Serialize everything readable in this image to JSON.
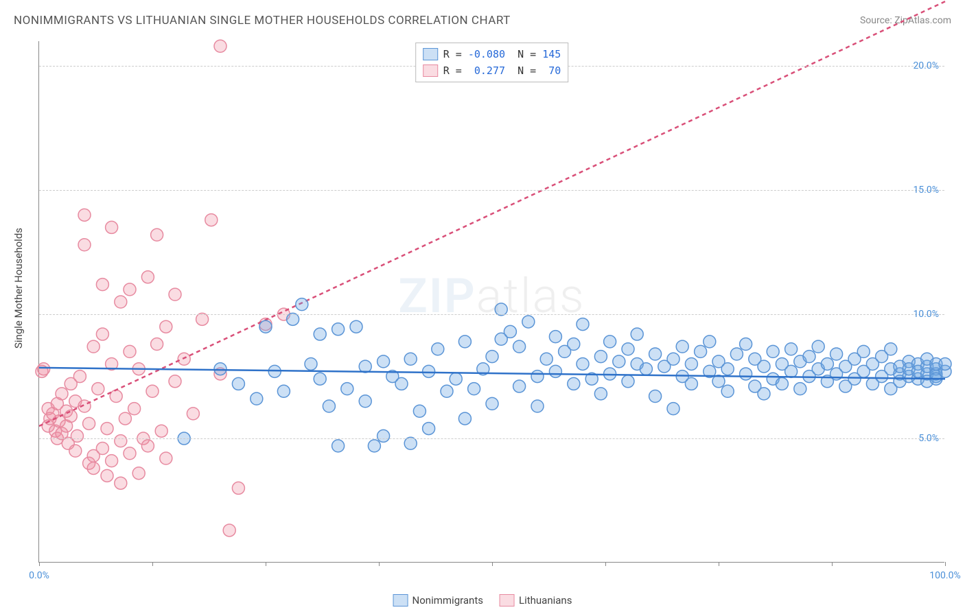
{
  "title": "NONIMMIGRANTS VS LITHUANIAN SINGLE MOTHER HOUSEHOLDS CORRELATION CHART",
  "source": "Source: ZipAtlas.com",
  "watermark_bold": "ZIP",
  "watermark_thin": "atlas",
  "y_axis_title": "Single Mother Households",
  "chart": {
    "type": "scatter",
    "xlim": [
      0,
      100
    ],
    "ylim": [
      0,
      21
    ],
    "x_ticks": [
      0,
      12.5,
      25,
      37.5,
      50,
      62.5,
      75,
      87.5,
      100
    ],
    "x_tick_labels": {
      "0": "0.0%",
      "100": "100.0%"
    },
    "y_ticks": [
      5,
      10,
      15,
      20
    ],
    "y_tick_labels": {
      "5": "5.0%",
      "10": "10.0%",
      "15": "15.0%",
      "20": "20.0%"
    },
    "background_color": "#ffffff",
    "grid_color": "#cccccc",
    "axis_color": "#888888",
    "label_color": "#4a8fd8",
    "marker_radius": 9,
    "marker_stroke_width": 1.5,
    "trend_line_width": 2.5
  },
  "series": {
    "nonimmigrants": {
      "label": "Nonimmigrants",
      "fill": "rgba(110,165,225,0.35)",
      "stroke": "#5a94d6",
      "trend_color": "#2f72c9",
      "trend_dash": "none",
      "r_value": "-0.080",
      "n_value": "145",
      "trend": {
        "x1": 0,
        "y1": 7.85,
        "x2": 100,
        "y2": 7.4
      },
      "points": [
        [
          16,
          5.0
        ],
        [
          20,
          7.8
        ],
        [
          22,
          7.2
        ],
        [
          24,
          6.6
        ],
        [
          25,
          9.5
        ],
        [
          26,
          7.7
        ],
        [
          27,
          6.9
        ],
        [
          28,
          9.8
        ],
        [
          29,
          10.4
        ],
        [
          30,
          8.0
        ],
        [
          31,
          7.4
        ],
        [
          31,
          9.2
        ],
        [
          32,
          6.3
        ],
        [
          33,
          4.7
        ],
        [
          33,
          9.4
        ],
        [
          34,
          7.0
        ],
        [
          35,
          9.5
        ],
        [
          36,
          6.5
        ],
        [
          36,
          7.9
        ],
        [
          37,
          4.7
        ],
        [
          38,
          8.1
        ],
        [
          38,
          5.1
        ],
        [
          39,
          7.5
        ],
        [
          40,
          7.2
        ],
        [
          41,
          4.8
        ],
        [
          41,
          8.2
        ],
        [
          42,
          6.1
        ],
        [
          43,
          7.7
        ],
        [
          43,
          5.4
        ],
        [
          44,
          8.6
        ],
        [
          45,
          6.9
        ],
        [
          46,
          7.4
        ],
        [
          47,
          5.8
        ],
        [
          47,
          8.9
        ],
        [
          48,
          7.0
        ],
        [
          49,
          7.8
        ],
        [
          50,
          8.3
        ],
        [
          50,
          6.4
        ],
        [
          51,
          9.0
        ],
        [
          51,
          10.2
        ],
        [
          52,
          9.3
        ],
        [
          53,
          7.1
        ],
        [
          53,
          8.7
        ],
        [
          54,
          9.7
        ],
        [
          55,
          7.5
        ],
        [
          55,
          6.3
        ],
        [
          56,
          8.2
        ],
        [
          57,
          7.7
        ],
        [
          57,
          9.1
        ],
        [
          58,
          8.5
        ],
        [
          59,
          7.2
        ],
        [
          59,
          8.8
        ],
        [
          60,
          8.0
        ],
        [
          60,
          9.6
        ],
        [
          61,
          7.4
        ],
        [
          62,
          8.3
        ],
        [
          62,
          6.8
        ],
        [
          63,
          8.9
        ],
        [
          63,
          7.6
        ],
        [
          64,
          8.1
        ],
        [
          65,
          7.3
        ],
        [
          65,
          8.6
        ],
        [
          66,
          8.0
        ],
        [
          66,
          9.2
        ],
        [
          67,
          7.8
        ],
        [
          68,
          8.4
        ],
        [
          68,
          6.7
        ],
        [
          69,
          7.9
        ],
        [
          70,
          8.2
        ],
        [
          70,
          6.2
        ],
        [
          71,
          7.5
        ],
        [
          71,
          8.7
        ],
        [
          72,
          8.0
        ],
        [
          72,
          7.2
        ],
        [
          73,
          8.5
        ],
        [
          74,
          7.7
        ],
        [
          74,
          8.9
        ],
        [
          75,
          7.3
        ],
        [
          75,
          8.1
        ],
        [
          76,
          7.8
        ],
        [
          76,
          6.9
        ],
        [
          77,
          8.4
        ],
        [
          78,
          7.6
        ],
        [
          78,
          8.8
        ],
        [
          79,
          7.1
        ],
        [
          79,
          8.2
        ],
        [
          80,
          7.9
        ],
        [
          80,
          6.8
        ],
        [
          81,
          8.5
        ],
        [
          81,
          7.4
        ],
        [
          82,
          8.0
        ],
        [
          82,
          7.2
        ],
        [
          83,
          8.6
        ],
        [
          83,
          7.7
        ],
        [
          84,
          8.1
        ],
        [
          84,
          7.0
        ],
        [
          85,
          8.3
        ],
        [
          85,
          7.5
        ],
        [
          86,
          8.7
        ],
        [
          86,
          7.8
        ],
        [
          87,
          8.0
        ],
        [
          87,
          7.3
        ],
        [
          88,
          8.4
        ],
        [
          88,
          7.6
        ],
        [
          89,
          7.9
        ],
        [
          89,
          7.1
        ],
        [
          90,
          8.2
        ],
        [
          90,
          7.4
        ],
        [
          91,
          8.5
        ],
        [
          91,
          7.7
        ],
        [
          92,
          8.0
        ],
        [
          92,
          7.2
        ],
        [
          93,
          8.3
        ],
        [
          93,
          7.5
        ],
        [
          94,
          7.8
        ],
        [
          94,
          7.0
        ],
        [
          94,
          8.6
        ],
        [
          95,
          7.6
        ],
        [
          95,
          7.9
        ],
        [
          95,
          7.3
        ],
        [
          96,
          8.1
        ],
        [
          96,
          7.5
        ],
        [
          96,
          7.8
        ],
        [
          97,
          7.4
        ],
        [
          97,
          8.0
        ],
        [
          97,
          7.7
        ],
        [
          98,
          7.6
        ],
        [
          98,
          7.9
        ],
        [
          98,
          7.3
        ],
        [
          98,
          8.2
        ],
        [
          99,
          7.5
        ],
        [
          99,
          7.8
        ],
        [
          99,
          7.6
        ],
        [
          99,
          8.0
        ],
        [
          99,
          7.4
        ],
        [
          100,
          7.7
        ],
        [
          100,
          8.0
        ]
      ]
    },
    "lithuanians": {
      "label": "Lithuanians",
      "fill": "rgba(240,140,160,0.30)",
      "stroke": "#e78aa0",
      "trend_color": "#d94f78",
      "trend_dash": "6,5",
      "r_value": "0.277",
      "n_value": "70",
      "trend": {
        "x1": 0,
        "y1": 5.5,
        "x2": 100,
        "y2": 22.6
      },
      "points": [
        [
          0.5,
          7.8
        ],
        [
          1,
          5.5
        ],
        [
          1,
          6.2
        ],
        [
          1.2,
          5.8
        ],
        [
          1.5,
          6.0
        ],
        [
          1.8,
          5.3
        ],
        [
          2,
          6.4
        ],
        [
          2,
          5.0
        ],
        [
          2.2,
          5.7
        ],
        [
          2.5,
          6.8
        ],
        [
          2.5,
          5.2
        ],
        [
          3,
          6.1
        ],
        [
          3,
          5.5
        ],
        [
          3.2,
          4.8
        ],
        [
          3.5,
          7.2
        ],
        [
          3.5,
          5.9
        ],
        [
          4,
          6.5
        ],
        [
          4,
          4.5
        ],
        [
          4.2,
          5.1
        ],
        [
          4.5,
          7.5
        ],
        [
          5,
          14.0
        ],
        [
          5,
          12.8
        ],
        [
          5,
          6.3
        ],
        [
          5.5,
          4.0
        ],
        [
          5.5,
          5.6
        ],
        [
          6,
          8.7
        ],
        [
          6,
          4.3
        ],
        [
          6,
          3.8
        ],
        [
          6.5,
          7.0
        ],
        [
          7,
          9.2
        ],
        [
          7,
          11.2
        ],
        [
          7,
          4.6
        ],
        [
          7.5,
          3.5
        ],
        [
          7.5,
          5.4
        ],
        [
          8,
          13.5
        ],
        [
          8,
          8.0
        ],
        [
          8,
          4.1
        ],
        [
          8.5,
          6.7
        ],
        [
          9,
          10.5
        ],
        [
          9,
          4.9
        ],
        [
          9,
          3.2
        ],
        [
          9.5,
          5.8
        ],
        [
          10,
          8.5
        ],
        [
          10,
          11.0
        ],
        [
          10,
          4.4
        ],
        [
          10.5,
          6.2
        ],
        [
          11,
          7.8
        ],
        [
          11,
          3.6
        ],
        [
          11.5,
          5.0
        ],
        [
          12,
          11.5
        ],
        [
          12,
          4.7
        ],
        [
          12.5,
          6.9
        ],
        [
          13,
          13.2
        ],
        [
          13,
          8.8
        ],
        [
          13.5,
          5.3
        ],
        [
          14,
          9.5
        ],
        [
          14,
          4.2
        ],
        [
          15,
          7.3
        ],
        [
          15,
          10.8
        ],
        [
          16,
          8.2
        ],
        [
          17,
          6.0
        ],
        [
          18,
          9.8
        ],
        [
          19,
          13.8
        ],
        [
          20,
          7.6
        ],
        [
          20,
          20.8
        ],
        [
          21,
          1.3
        ],
        [
          22,
          3.0
        ],
        [
          25,
          9.6
        ],
        [
          27,
          10.0
        ],
        [
          0.3,
          7.7
        ]
      ]
    }
  }
}
